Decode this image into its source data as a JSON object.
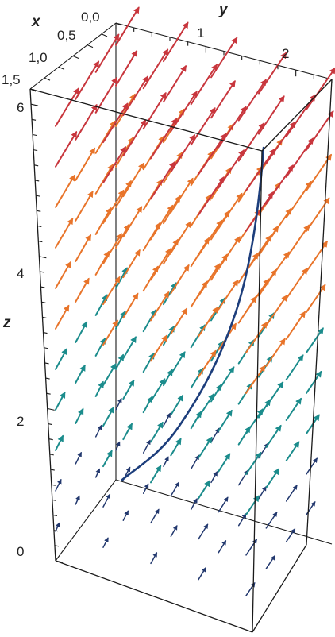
{
  "axes": {
    "x": {
      "name": "x",
      "ticks": [
        {
          "value": 0.0,
          "label": "0,0"
        },
        {
          "value": 0.5,
          "label": "0,5"
        },
        {
          "value": 1.0,
          "label": "1,0"
        },
        {
          "value": 1.5,
          "label": "1,5"
        }
      ]
    },
    "y": {
      "name": "y",
      "ticks": [
        {
          "value": 1,
          "label": "1"
        },
        {
          "value": 2,
          "label": "2"
        }
      ]
    },
    "z": {
      "name": "z",
      "ticks": [
        {
          "value": 0,
          "label": "0"
        },
        {
          "value": 2,
          "label": "2"
        },
        {
          "value": 4,
          "label": "4"
        },
        {
          "value": 6,
          "label": "6"
        }
      ]
    }
  },
  "colors": {
    "low": "#22386e",
    "mid": "#1b8c8c",
    "orange": "#e8742a",
    "high": "#c8363d",
    "curve": "#1d3e7c"
  }
}
